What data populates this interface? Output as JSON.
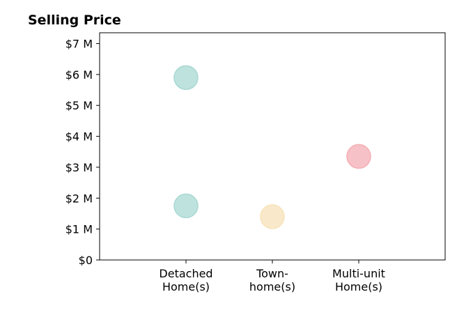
{
  "chart_data": {
    "type": "scatter",
    "title": "Selling Price",
    "xlabel": "",
    "ylabel": "",
    "categories": [
      [
        "Detached",
        "Home(s)"
      ],
      [
        "Town-",
        "home(s)"
      ],
      [
        "Multi-unit",
        "Home(s)"
      ]
    ],
    "yticks": [
      {
        "value": 0,
        "label": "$0"
      },
      {
        "value": 1000000,
        "label": "$1 M"
      },
      {
        "value": 2000000,
        "label": "$2 M"
      },
      {
        "value": 3000000,
        "label": "$3 M"
      },
      {
        "value": 4000000,
        "label": "$4 M"
      },
      {
        "value": 5000000,
        "label": "$5 M"
      },
      {
        "value": 6000000,
        "label": "$6 M"
      },
      {
        "value": 7000000,
        "label": "$7 M"
      }
    ],
    "ylim": [
      0,
      7350000
    ],
    "grid": false,
    "points": [
      {
        "category": 0,
        "value": 5900000,
        "color": "#a8d8d2"
      },
      {
        "category": 0,
        "value": 1750000,
        "color": "#a8d8d2"
      },
      {
        "category": 1,
        "value": 1400000,
        "color": "#f7e2b8"
      },
      {
        "category": 2,
        "value": 3350000,
        "color": "#f4aeb4"
      }
    ]
  }
}
